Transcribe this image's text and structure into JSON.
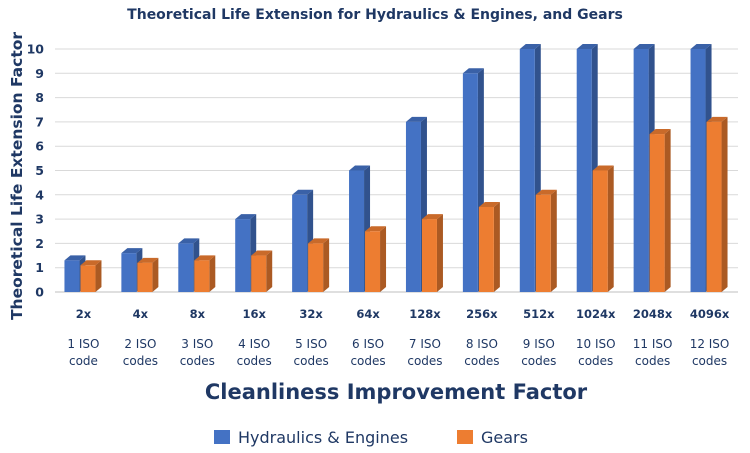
{
  "chart_data": {
    "type": "bar",
    "title": "Theoretical Life Extension for Hydraulics & Engines, and Gears",
    "xlabel": "Cleanliness Improvement Factor",
    "ylabel": "Theoretical Life Extension Factor",
    "ylim": [
      0,
      10
    ],
    "yticks": [
      "0",
      "1",
      "2",
      "3",
      "4",
      "5",
      "6",
      "7",
      "8",
      "9",
      "10"
    ],
    "grid": true,
    "legend_position": "bottom",
    "categories": [
      "2x",
      "4x",
      "8x",
      "16x",
      "32x",
      "64x",
      "128x",
      "256x",
      "512x",
      "1024x",
      "2048x",
      "4096x"
    ],
    "sub_labels": [
      [
        "1 ISO",
        "code"
      ],
      [
        "2 ISO",
        "codes"
      ],
      [
        "3 ISO",
        "codes"
      ],
      [
        "4 ISO",
        "codes"
      ],
      [
        "5 ISO",
        "codes"
      ],
      [
        "6 ISO",
        "codes"
      ],
      [
        "7 ISO",
        "codes"
      ],
      [
        "8 ISO",
        "codes"
      ],
      [
        "9 ISO",
        "codes"
      ],
      [
        "10 ISO",
        "codes"
      ],
      [
        "11 ISO",
        "codes"
      ],
      [
        "12 ISO",
        "codes"
      ]
    ],
    "series": [
      {
        "name": "Hydraulics & Engines",
        "color": "#4472c4",
        "values": [
          1.3,
          1.6,
          2,
          3,
          4,
          5,
          7,
          9,
          10,
          10,
          10,
          10
        ]
      },
      {
        "name": "Gears",
        "color": "#ed7d31",
        "values": [
          1.1,
          1.2,
          1.3,
          1.5,
          2,
          2.5,
          3,
          3.5,
          4,
          5,
          6.5,
          7
        ]
      }
    ]
  }
}
